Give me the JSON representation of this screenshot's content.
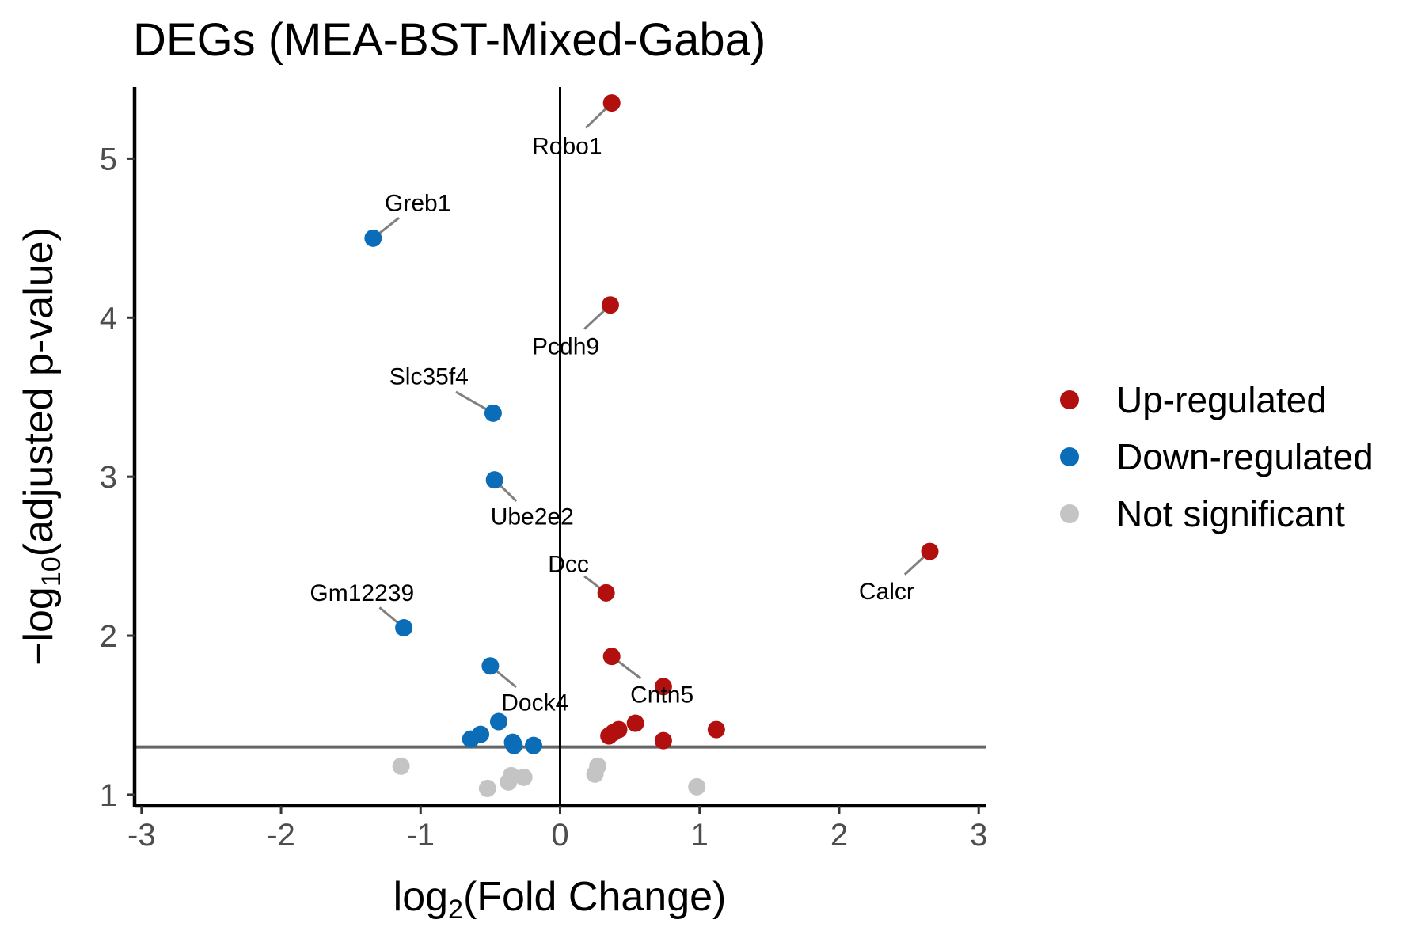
{
  "chart_data": {
    "type": "scatter",
    "title": "DEGs (MEA-BST-Mixed-Gaba)",
    "xlabel": {
      "prefix": "log",
      "sub": "2",
      "rest": "(Fold Change)"
    },
    "ylabel": {
      "prefix": "−log",
      "sub": "10",
      "rest": "(adjusted p-value)"
    },
    "xlim": [
      -3.05,
      3.05
    ],
    "ylim": [
      0.93,
      5.45
    ],
    "x_ticks": [
      -3,
      -2,
      -1,
      0,
      1,
      2,
      3
    ],
    "x_tick_labels": [
      "-3",
      "-2",
      "-1",
      "0",
      "1",
      "2",
      "3"
    ],
    "y_ticks": [
      1,
      2,
      3,
      4,
      5
    ],
    "y_tick_labels": [
      "1",
      "2",
      "3",
      "4",
      "5"
    ],
    "threshold_y": 1.3,
    "vertical_line_x": 0,
    "grid": false,
    "legend_position": "right",
    "colors": {
      "up": "#b2100f",
      "down": "#0b6cb7",
      "ns": "#c4c4c4",
      "threshold": "#666666",
      "leader": "#808080"
    },
    "series": [
      {
        "name": "Up-regulated",
        "key": "up",
        "points": [
          {
            "x": 0.37,
            "y": 5.35
          },
          {
            "x": 0.36,
            "y": 4.08
          },
          {
            "x": 2.65,
            "y": 2.53
          },
          {
            "x": 0.33,
            "y": 2.27
          },
          {
            "x": 0.37,
            "y": 1.87
          },
          {
            "x": 0.74,
            "y": 1.68
          },
          {
            "x": 0.54,
            "y": 1.45
          },
          {
            "x": 0.42,
            "y": 1.41
          },
          {
            "x": 0.38,
            "y": 1.39
          },
          {
            "x": 0.35,
            "y": 1.37
          },
          {
            "x": 1.12,
            "y": 1.41
          },
          {
            "x": 0.74,
            "y": 1.34
          }
        ]
      },
      {
        "name": "Down-regulated",
        "key": "down",
        "points": [
          {
            "x": -1.34,
            "y": 4.5
          },
          {
            "x": -0.48,
            "y": 3.4
          },
          {
            "x": -0.47,
            "y": 2.98
          },
          {
            "x": -1.12,
            "y": 2.05
          },
          {
            "x": -0.5,
            "y": 1.81
          },
          {
            "x": -0.44,
            "y": 1.46
          },
          {
            "x": -0.57,
            "y": 1.38
          },
          {
            "x": -0.64,
            "y": 1.35
          },
          {
            "x": -0.34,
            "y": 1.33
          },
          {
            "x": -0.33,
            "y": 1.31
          },
          {
            "x": -0.19,
            "y": 1.31
          }
        ]
      },
      {
        "name": "Not significant",
        "key": "ns",
        "points": [
          {
            "x": -1.14,
            "y": 1.18
          },
          {
            "x": -0.52,
            "y": 1.04
          },
          {
            "x": -0.37,
            "y": 1.08
          },
          {
            "x": -0.35,
            "y": 1.12
          },
          {
            "x": -0.26,
            "y": 1.11
          },
          {
            "x": 0.25,
            "y": 1.13
          },
          {
            "x": 0.27,
            "y": 1.18
          },
          {
            "x": 0.98,
            "y": 1.05
          }
        ]
      }
    ],
    "annotations": [
      {
        "text": "Robo1",
        "x": 0.37,
        "y": 5.35,
        "tx": 0.05,
        "ty": 5.08
      },
      {
        "text": "Greb1",
        "x": -1.34,
        "y": 4.5,
        "tx": -1.02,
        "ty": 4.72
      },
      {
        "text": "Pcdh9",
        "x": 0.36,
        "y": 4.08,
        "tx": 0.04,
        "ty": 3.82
      },
      {
        "text": "Slc35f4",
        "x": -0.48,
        "y": 3.4,
        "tx": -0.94,
        "ty": 3.63
      },
      {
        "text": "Ube2e2",
        "x": -0.47,
        "y": 2.98,
        "tx": -0.2,
        "ty": 2.75
      },
      {
        "text": "Dcc",
        "x": 0.33,
        "y": 2.27,
        "tx": 0.06,
        "ty": 2.45
      },
      {
        "text": "Calcr",
        "x": 2.65,
        "y": 2.53,
        "tx": 2.34,
        "ty": 2.28
      },
      {
        "text": "Gm12239",
        "x": -1.12,
        "y": 2.05,
        "tx": -1.42,
        "ty": 2.27
      },
      {
        "text": "Dock4",
        "x": -0.5,
        "y": 1.81,
        "tx": -0.18,
        "ty": 1.58
      },
      {
        "text": "Cntn5",
        "x": 0.37,
        "y": 1.87,
        "tx": 0.73,
        "ty": 1.63
      }
    ]
  }
}
